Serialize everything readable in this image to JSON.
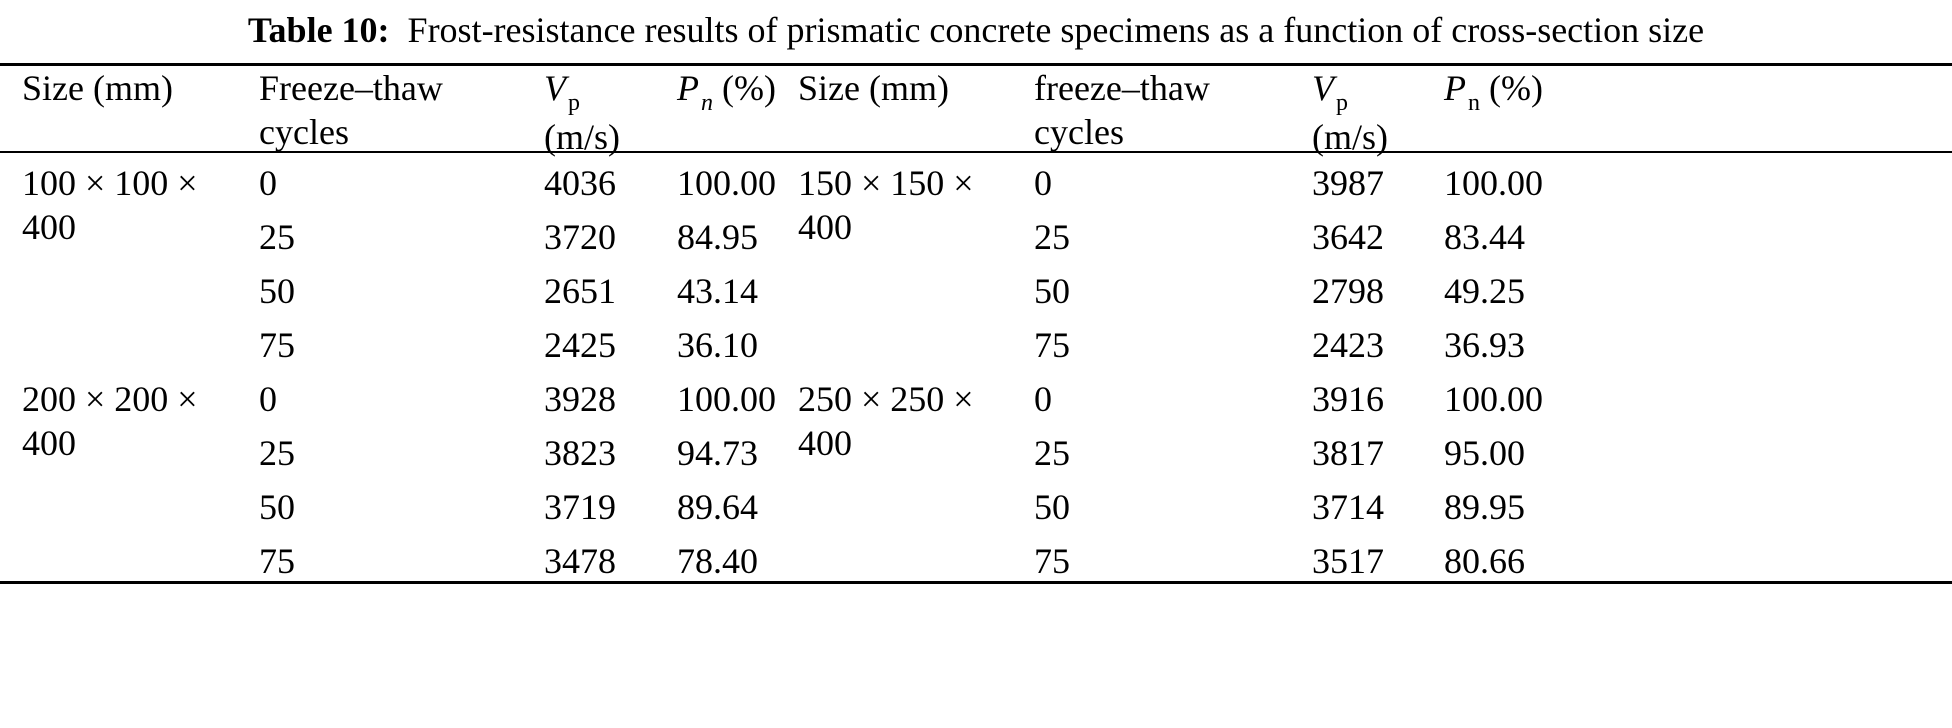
{
  "caption": {
    "label": "Table 10:",
    "text": "Frost-resistance results of prismatic concrete specimens as a function of cross-section size"
  },
  "headers": {
    "left": {
      "size": "Size (mm)",
      "cycles_line1": "Freeze–thaw",
      "cycles_line2": "cycles",
      "vp_symbol": "V",
      "vp_sub": "p",
      "vp_unit": "(m/s)",
      "pn_symbol": "P",
      "pn_sub": "n",
      "pn_unit": "(%)"
    },
    "right": {
      "size": "Size (mm)",
      "cycles_line1": "freeze–thaw",
      "cycles_line2": "cycles",
      "vp_symbol": "V",
      "vp_sub": "p",
      "vp_unit": "(m/s)",
      "pn_symbol": "P",
      "pn_sub": "n",
      "pn_unit": "(%)"
    }
  },
  "groups": [
    {
      "left": {
        "size_line1": "100 × 100 ×",
        "size_line2": "400",
        "rows": [
          {
            "cycles": "0",
            "vp": "4036",
            "pn": "100.00"
          },
          {
            "cycles": "25",
            "vp": "3720",
            "pn": "84.95"
          },
          {
            "cycles": "50",
            "vp": "2651",
            "pn": "43.14"
          },
          {
            "cycles": "75",
            "vp": "2425",
            "pn": "36.10"
          }
        ]
      },
      "right": {
        "size_line1": "150 × 150 ×",
        "size_line2": "400",
        "rows": [
          {
            "cycles": "0",
            "vp": "3987",
            "pn": "100.00"
          },
          {
            "cycles": "25",
            "vp": "3642",
            "pn": "83.44"
          },
          {
            "cycles": "50",
            "vp": "2798",
            "pn": "49.25"
          },
          {
            "cycles": "75",
            "vp": "2423",
            "pn": "36.93"
          }
        ]
      }
    },
    {
      "left": {
        "size_line1": "200 × 200 ×",
        "size_line2": "400",
        "rows": [
          {
            "cycles": "0",
            "vp": "3928",
            "pn": "100.00"
          },
          {
            "cycles": "25",
            "vp": "3823",
            "pn": "94.73"
          },
          {
            "cycles": "50",
            "vp": "3719",
            "pn": "89.64"
          },
          {
            "cycles": "75",
            "vp": "3478",
            "pn": "78.40"
          }
        ]
      },
      "right": {
        "size_line1": "250 × 250 ×",
        "size_line2": "400",
        "rows": [
          {
            "cycles": "0",
            "vp": "3916",
            "pn": "100.00"
          },
          {
            "cycles": "25",
            "vp": "3817",
            "pn": "95.00"
          },
          {
            "cycles": "50",
            "vp": "3714",
            "pn": "89.95"
          },
          {
            "cycles": "75",
            "vp": "3517",
            "pn": "80.66"
          }
        ]
      }
    }
  ]
}
